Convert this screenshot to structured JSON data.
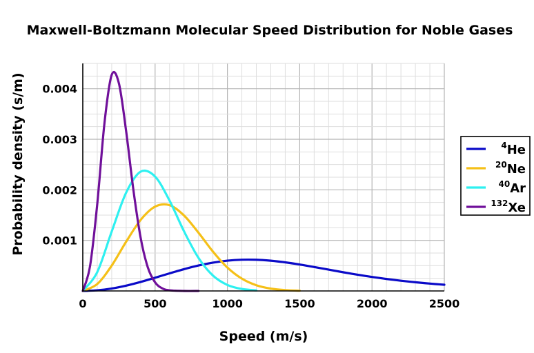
{
  "chart_data": {
    "type": "line",
    "title": "Maxwell-Boltzmann Molecular Speed Distribution for Noble Gases",
    "xlabel": "Speed (m/s)",
    "ylabel": "Probability density (s/m)",
    "xlim": [
      0,
      2500
    ],
    "ylim": [
      0,
      0.0045
    ],
    "x_ticks": [
      "0",
      "500",
      "1000",
      "1500",
      "2000",
      "2500"
    ],
    "y_ticks": [
      "0.001",
      "0.002",
      "0.003",
      "0.004"
    ],
    "grid": true,
    "legend_position": "right",
    "series": [
      {
        "name_mass": "4",
        "name_symbol": "He",
        "color": "#0a0ac8",
        "x": [
          0,
          100,
          200,
          300,
          400,
          500,
          600,
          700,
          800,
          900,
          1000,
          1100,
          1200,
          1300,
          1400,
          1500,
          1600,
          1700,
          1800,
          1900,
          2000,
          2100,
          2200,
          2300,
          2400,
          2500
        ],
        "y": [
          0,
          1.24e-05,
          4.85e-05,
          0.0001054,
          0.0001785,
          0.0002617,
          0.0003481,
          0.0004307,
          0.0005031,
          0.0005604,
          0.0005993,
          0.000618,
          0.0006171,
          0.0005986,
          0.0005658,
          0.0005227,
          0.0004736,
          0.0004216,
          0.00037,
          0.0003211,
          0.0002765,
          0.000237,
          0.0002024,
          0.0001722,
          0.0001456,
          0.0001223
        ]
      },
      {
        "name_mass": "20",
        "name_symbol": "Ne",
        "color": "#f5c018",
        "x": [
          0,
          100,
          200,
          300,
          400,
          500,
          600,
          700,
          800,
          900,
          1000,
          1100,
          1200,
          1300,
          1400,
          1500
        ],
        "y": [
          0,
          0.0001366,
          0.0005017,
          0.0009746,
          0.0014045,
          0.0016675,
          0.0016962,
          0.0014924,
          0.0011523,
          0.0007782,
          0.0004628,
          0.0002432,
          0.0001125,
          4.58e-05,
          1.64e-05,
          5.2e-06
        ]
      },
      {
        "name_mass": "40",
        "name_symbol": "Ar",
        "color": "#2ef0f0",
        "x": [
          0,
          100,
          200,
          300,
          400,
          500,
          600,
          700,
          800,
          900,
          1000,
          1100,
          1200
        ],
        "y": [
          0,
          0.0003731,
          0.0011756,
          0.0019452,
          0.0023592,
          0.0022625,
          0.0017862,
          0.0011801,
          0.0006543,
          0.0003043,
          0.000119,
          3.92e-05,
          1.1e-05
        ]
      },
      {
        "name_mass": "132",
        "name_symbol": "Xe",
        "color": "#70109a",
        "x": [
          0,
          50,
          100,
          150,
          200,
          250,
          300,
          350,
          400,
          450,
          500,
          550,
          600,
          700,
          800
        ],
        "y": [
          0,
          0.000489,
          0.0017184,
          0.0033234,
          0.0042744,
          0.0041028,
          0.0031536,
          0.0019971,
          0.0010534,
          0.0004632,
          0.0001695,
          5.14e-05,
          1.3e-05,
          4e-07,
          0
        ]
      }
    ]
  }
}
